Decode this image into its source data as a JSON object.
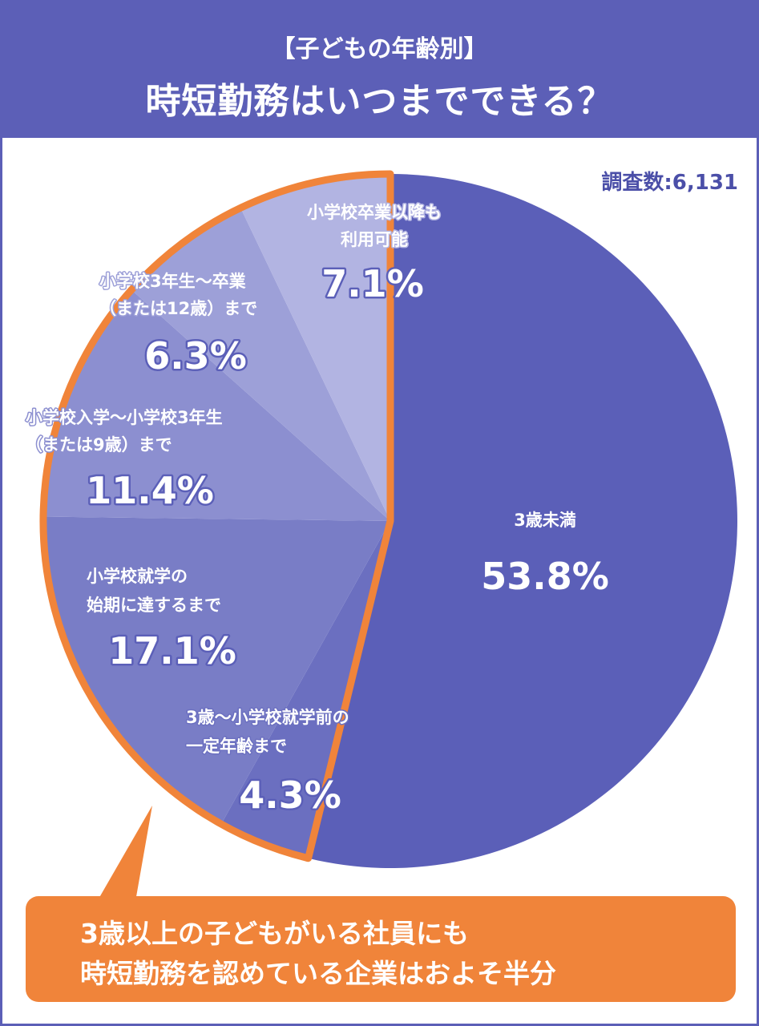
{
  "header": {
    "subtitle": "【子どもの年齢別】",
    "title": "時短勤務はいつまでできる？"
  },
  "sample_size_label": "調査数:6,131",
  "colors": {
    "header": "#5c5fb7",
    "accent_orange": "#f0843a",
    "slices": [
      "#5b5fb8",
      "#6b6fc0",
      "#797dc6",
      "#8c8fd0",
      "#9da0d8",
      "#b2b4e2"
    ]
  },
  "chart_data": {
    "type": "pie",
    "start_angle_deg": 0,
    "direction": "clockwise",
    "slices": [
      {
        "label_lines": [
          "3歳未満"
        ],
        "value": 53.8,
        "value_label": "53.8%"
      },
      {
        "label_lines": [
          "3歳〜小学校就学前の",
          "一定年齢まで"
        ],
        "value": 4.3,
        "value_label": "4.3%"
      },
      {
        "label_lines": [
          "小学校就学の",
          "始期に達するまで"
        ],
        "value": 17.1,
        "value_label": "17.1%"
      },
      {
        "label_lines": [
          "小学校入学〜小学校3年生",
          "（または9歳）まで"
        ],
        "value": 11.4,
        "value_label": "11.4%"
      },
      {
        "label_lines": [
          "小学校3年生〜卒業",
          "（または12歳）まで"
        ],
        "value": 6.3,
        "value_label": "6.3%"
      },
      {
        "label_lines": [
          "小学校卒業以降も",
          "利用可能"
        ],
        "value": 7.1,
        "value_label": "7.1%"
      }
    ],
    "highlighted_slices": [
      1,
      2,
      3,
      4,
      5
    ]
  },
  "callout": {
    "lines": [
      "3歳以上の子どもがいる社員にも",
      "時短勤務を認めている企業はおよそ半分"
    ]
  }
}
